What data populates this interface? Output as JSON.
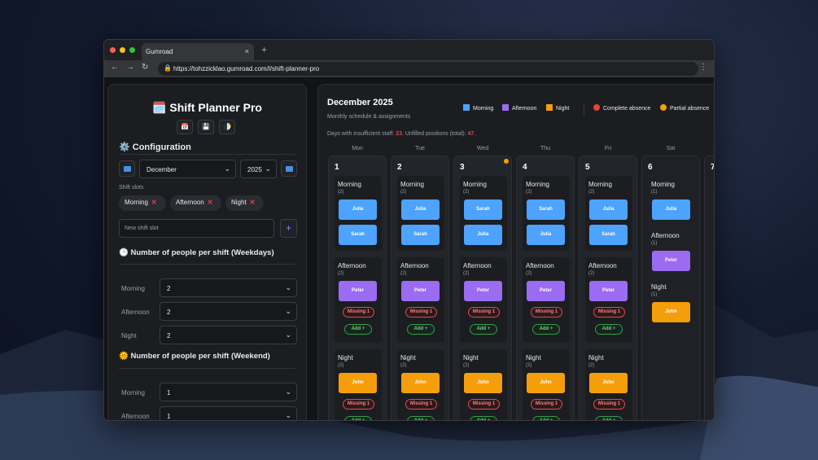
{
  "browser": {
    "tab_title": "Gumroad",
    "tab_close": "×",
    "new_tab": "+",
    "url": "https://tohzzicklao.gumroad.com/l/shift-planner-pro",
    "back": "←",
    "forward": "→",
    "reload": "↻",
    "lock": "🔒",
    "menu": "⋮"
  },
  "sidebar": {
    "title": "🗓️ Shift Planner Pro",
    "tools": [
      "📅",
      "💾",
      "🌓"
    ],
    "config_title": "⚙️ Configuration",
    "month": "December",
    "year": "2025",
    "shift_slots_label": "Shift slots",
    "slots": [
      "Morning",
      "Afternoon",
      "Night"
    ],
    "remove_glyph": "✕",
    "new_slot_placeholder": "New shift slot",
    "add_glyph": "+",
    "weekdays_title": "🕒 Number of people per shift (Weekdays)",
    "weekend_title": "🌞 Number of people per shift (Weekend)",
    "weekday_rows": [
      {
        "label": "Morning",
        "value": "2"
      },
      {
        "label": "Afternoon",
        "value": "2"
      },
      {
        "label": "Night",
        "value": "2"
      }
    ],
    "weekend_rows": [
      {
        "label": "Morning",
        "value": "1"
      },
      {
        "label": "Afternoon",
        "value": "1"
      }
    ],
    "chevron": "⌄"
  },
  "calendar": {
    "title": "December 2025",
    "subtitle": "Monthly schedule & assignments",
    "legend": {
      "morning": "Morning",
      "afternoon": "Afternoon",
      "night": "Night",
      "complete_absence": "Complete absence",
      "partial_absence": "Partial absence"
    },
    "info_prefix": "Days with insufficient staff: ",
    "insufficient_days": "23",
    "info_mid": ". Unfilled positions (total): ",
    "unfilled_positions": "47",
    "info_suffix": ".",
    "weekdays": [
      "Mon",
      "Tue",
      "Wed",
      "Thu",
      "Fri",
      "Sat"
    ],
    "shift_counts": {
      "weekday": "(2)",
      "weekend": "(1)"
    },
    "missing_label": "Missing 1",
    "add_label": "Add",
    "add_plus": "+",
    "days": [
      {
        "num": "1",
        "morning": [
          "Julia",
          "Sarah"
        ],
        "afternoon": [
          "Peter"
        ],
        "night": [
          "John"
        ]
      },
      {
        "num": "2",
        "morning": [
          "Julia",
          "Sarah"
        ],
        "afternoon": [
          "Peter"
        ],
        "night": [
          "John"
        ]
      },
      {
        "num": "3",
        "morning": [
          "Sarah",
          "Julia"
        ],
        "afternoon": [
          "Peter"
        ],
        "night": [
          "John"
        ]
      },
      {
        "num": "4",
        "morning": [
          "Sarah",
          "Julia"
        ],
        "afternoon": [
          "Peter"
        ],
        "night": [
          "John"
        ]
      },
      {
        "num": "5",
        "morning": [
          "Julia",
          "Sarah"
        ],
        "afternoon": [
          "Peter"
        ],
        "night": [
          "John"
        ]
      },
      {
        "num": "6",
        "morning": [
          "Julia"
        ],
        "afternoon": [
          "Peter"
        ],
        "night": [
          "John"
        ]
      },
      {
        "num": "7"
      }
    ],
    "shift_names": {
      "morning": "Morning",
      "afternoon": "Afternoon",
      "night": "Night"
    },
    "colors": {
      "morning": "#4da3ff",
      "afternoon": "#9b6bf2",
      "night": "#f59e0b",
      "complete_absence": "#ea4335",
      "partial_absence": "#f29f05"
    }
  }
}
